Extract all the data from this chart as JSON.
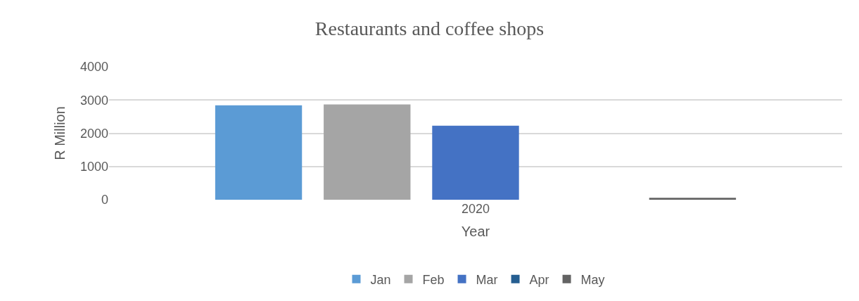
{
  "chart_data": {
    "type": "bar",
    "title": "Restaurants and coffee shops",
    "xlabel": "Year",
    "ylabel": "R Million",
    "categories": [
      "2020"
    ],
    "series": [
      {
        "name": "Jan",
        "color": "#5b9bd5",
        "values": [
          2840
        ]
      },
      {
        "name": "Feb",
        "color": "#a5a5a5",
        "values": [
          2870
        ]
      },
      {
        "name": "Mar",
        "color": "#4472c4",
        "values": [
          2230
        ]
      },
      {
        "name": "Apr",
        "color": "#255e91",
        "values": [
          0
        ]
      },
      {
        "name": "May",
        "color": "#636363",
        "values": [
          60
        ]
      }
    ],
    "ylim": [
      0,
      4000
    ],
    "yticks": [
      0,
      1000,
      2000,
      3000,
      4000
    ],
    "grid": "y",
    "legend": "bottom"
  }
}
